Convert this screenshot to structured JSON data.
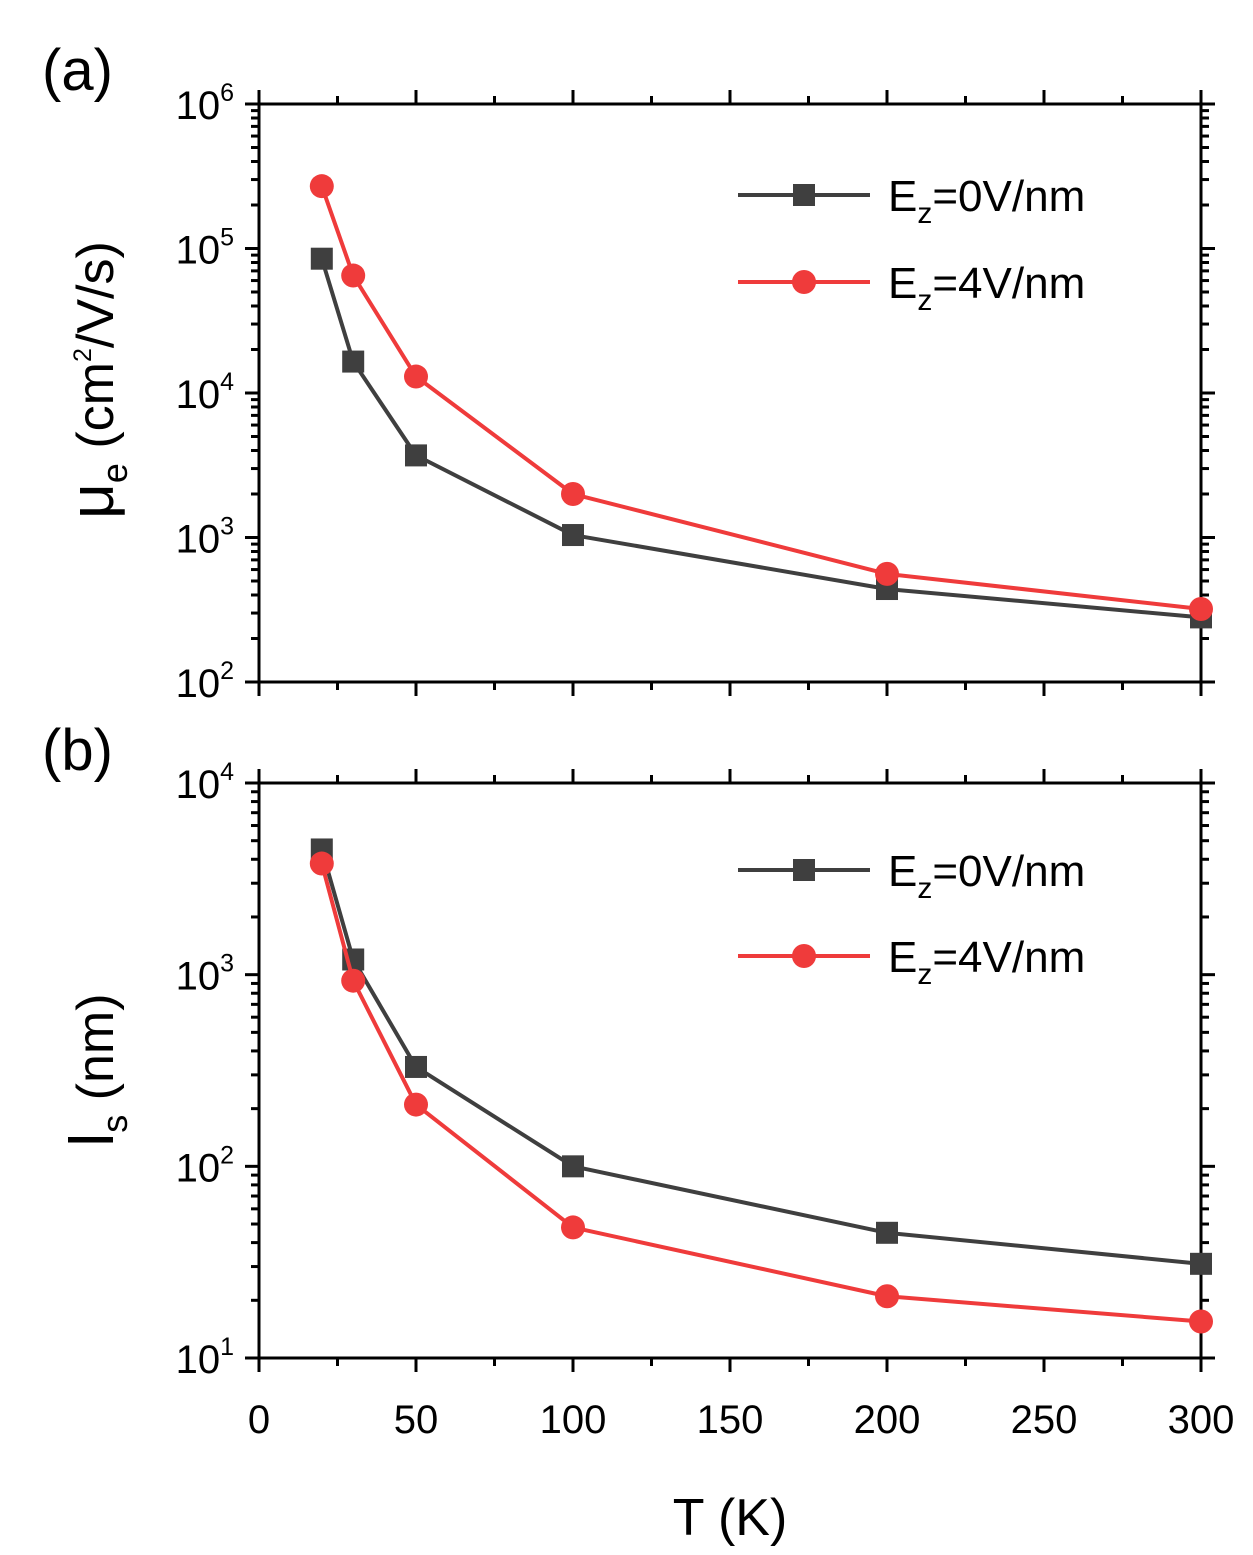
{
  "chart_data": [
    {
      "type": "line",
      "panel_label": "(a)",
      "ylabel": {
        "base": "μ",
        "subscript": "e",
        "unit_open": "(cm",
        "unit_sup": "2",
        "unit_close": "/V/s)"
      },
      "yscale": "log",
      "ylim": [
        100,
        1000000
      ],
      "yticks": [
        {
          "value": 100,
          "base": "10",
          "exp": "2"
        },
        {
          "value": 1000,
          "base": "10",
          "exp": "3"
        },
        {
          "value": 10000,
          "base": "10",
          "exp": "4"
        },
        {
          "value": 100000,
          "base": "10",
          "exp": "5"
        },
        {
          "value": 1000000,
          "base": "10",
          "exp": "6"
        }
      ],
      "xlim": [
        0,
        300
      ],
      "legend_position": "top-right",
      "series": [
        {
          "name": "E_z=0V/nm",
          "label": {
            "main": "E",
            "sub": "z",
            "rest": "=0V/nm"
          },
          "color": "#3f3f3f",
          "marker": "square",
          "x": [
            20,
            30,
            50,
            100,
            200,
            300
          ],
          "values": [
            85000,
            16500,
            3700,
            1040,
            440,
            280
          ]
        },
        {
          "name": "E_z=4V/nm",
          "label": {
            "main": "E",
            "sub": "z",
            "rest": "=4V/nm"
          },
          "color": "#ef3b3b",
          "marker": "circle",
          "x": [
            20,
            30,
            50,
            100,
            200,
            300
          ],
          "values": [
            270000,
            65000,
            13000,
            2000,
            560,
            320
          ]
        }
      ]
    },
    {
      "type": "line",
      "panel_label": "(b)",
      "ylabel": {
        "base": "l",
        "subscript": "s",
        "unit_open": "(nm)",
        "unit_sup": "",
        "unit_close": ""
      },
      "yscale": "log",
      "ylim": [
        10,
        10000
      ],
      "yticks": [
        {
          "value": 10,
          "base": "10",
          "exp": "1"
        },
        {
          "value": 100,
          "base": "10",
          "exp": "2"
        },
        {
          "value": 1000,
          "base": "10",
          "exp": "3"
        },
        {
          "value": 10000,
          "base": "10",
          "exp": "4"
        }
      ],
      "xlim": [
        0,
        300
      ],
      "xticks": [
        "0",
        "50",
        "100",
        "150",
        "200",
        "250",
        "300"
      ],
      "xlabel": "T (K)",
      "legend_position": "top-right",
      "series": [
        {
          "name": "E_z=0V/nm",
          "label": {
            "main": "E",
            "sub": "z",
            "rest": "=0V/nm"
          },
          "color": "#3f3f3f",
          "marker": "square",
          "x": [
            20,
            30,
            50,
            100,
            200,
            300
          ],
          "values": [
            4500,
            1200,
            330,
            100,
            45,
            31
          ]
        },
        {
          "name": "E_z=4V/nm",
          "label": {
            "main": "E",
            "sub": "z",
            "rest": "=4V/nm"
          },
          "color": "#ef3b3b",
          "marker": "circle",
          "x": [
            20,
            30,
            50,
            100,
            200,
            300
          ],
          "values": [
            3800,
            930,
            210,
            48,
            21,
            15.5
          ]
        }
      ]
    }
  ]
}
